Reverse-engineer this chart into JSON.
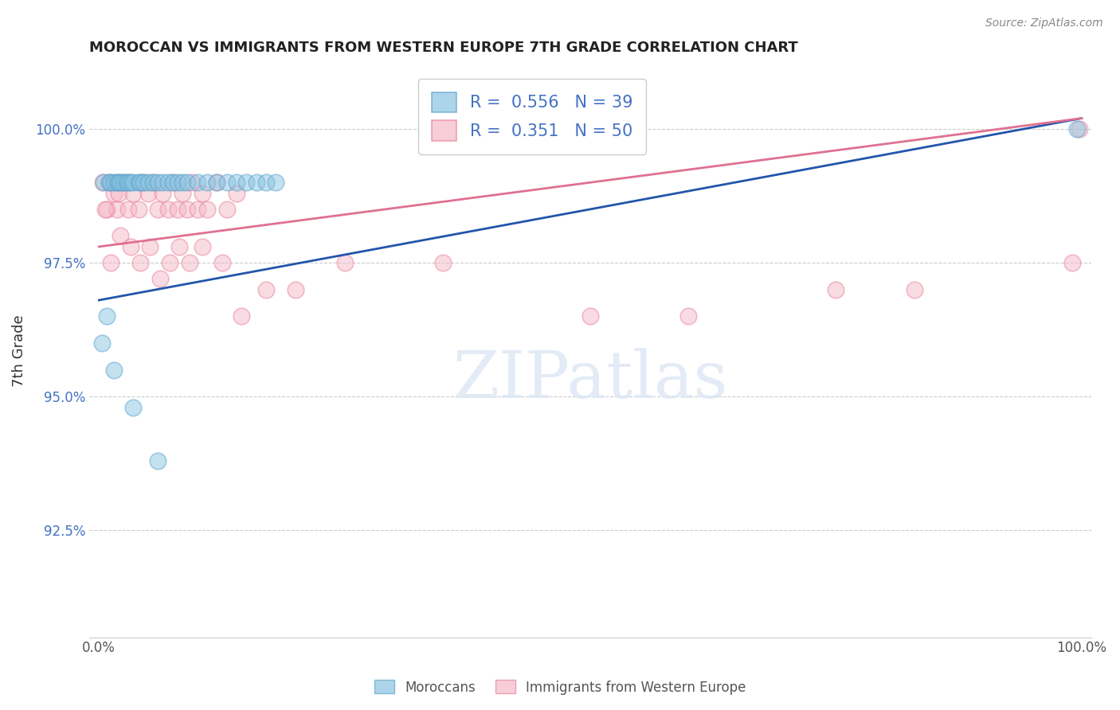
{
  "title": "MOROCCAN VS IMMIGRANTS FROM WESTERN EUROPE 7TH GRADE CORRELATION CHART",
  "source": "Source: ZipAtlas.com",
  "ylabel": "7th Grade",
  "xlim": [
    -1,
    101
  ],
  "ylim": [
    90.5,
    101.2
  ],
  "yticks": [
    92.5,
    95.0,
    97.5,
    100.0
  ],
  "ytick_labels": [
    "92.5%",
    "95.0%",
    "97.5%",
    "100.0%"
  ],
  "xticks": [
    0,
    100
  ],
  "xtick_labels": [
    "0.0%",
    "100.0%"
  ],
  "blue_color": "#89c4e1",
  "pink_color": "#f5b8c8",
  "blue_edge_color": "#5ba3cc",
  "pink_edge_color": "#e8829a",
  "blue_line_color": "#2255aa",
  "pink_line_color": "#e07090",
  "R_blue": 0.556,
  "N_blue": 39,
  "R_pink": 0.351,
  "N_pink": 50,
  "blue_x": [
    0.5,
    1.0,
    1.2,
    1.5,
    1.8,
    2.0,
    2.2,
    2.5,
    2.8,
    3.0,
    3.2,
    3.5,
    4.0,
    4.2,
    4.5,
    5.0,
    5.5,
    6.0,
    6.5,
    7.0,
    7.5,
    8.0,
    8.5,
    9.0,
    10.0,
    11.0,
    12.0,
    13.0,
    14.0,
    15.0,
    16.0,
    17.0,
    18.0,
    0.3,
    0.8,
    1.5,
    3.5,
    6.0,
    99.5
  ],
  "blue_y": [
    99.0,
    99.0,
    99.0,
    99.0,
    99.0,
    99.0,
    99.0,
    99.0,
    99.0,
    99.0,
    99.0,
    99.0,
    99.0,
    99.0,
    99.0,
    99.0,
    99.0,
    99.0,
    99.0,
    99.0,
    99.0,
    99.0,
    99.0,
    99.0,
    99.0,
    99.0,
    99.0,
    99.0,
    99.0,
    99.0,
    99.0,
    99.0,
    99.0,
    96.0,
    96.5,
    95.5,
    94.8,
    93.8,
    100.0
  ],
  "pink_x": [
    0.4,
    0.8,
    1.0,
    1.5,
    1.8,
    2.0,
    2.5,
    3.0,
    3.5,
    4.0,
    4.5,
    5.0,
    5.5,
    6.0,
    6.5,
    7.0,
    7.5,
    8.0,
    8.5,
    9.0,
    9.5,
    10.0,
    10.5,
    11.0,
    12.0,
    13.0,
    14.0,
    0.6,
    1.2,
    2.2,
    3.2,
    4.2,
    5.2,
    6.2,
    7.2,
    8.2,
    9.2,
    10.5,
    12.5,
    14.5,
    17.0,
    20.0,
    25.0,
    35.0,
    50.0,
    60.0,
    75.0,
    83.0,
    99.0,
    99.8
  ],
  "pink_y": [
    99.0,
    98.5,
    99.0,
    98.8,
    98.5,
    98.8,
    99.0,
    98.5,
    98.8,
    98.5,
    99.0,
    98.8,
    99.0,
    98.5,
    98.8,
    98.5,
    99.0,
    98.5,
    98.8,
    98.5,
    99.0,
    98.5,
    98.8,
    98.5,
    99.0,
    98.5,
    98.8,
    98.5,
    97.5,
    98.0,
    97.8,
    97.5,
    97.8,
    97.2,
    97.5,
    97.8,
    97.5,
    97.8,
    97.5,
    96.5,
    97.0,
    97.0,
    97.5,
    97.5,
    96.5,
    96.5,
    97.0,
    97.0,
    97.5,
    100.0
  ],
  "blue_trend_x": [
    0,
    100
  ],
  "blue_trend_y": [
    96.8,
    100.2
  ],
  "pink_trend_x": [
    0,
    100
  ],
  "pink_trend_y": [
    97.8,
    100.2
  ]
}
